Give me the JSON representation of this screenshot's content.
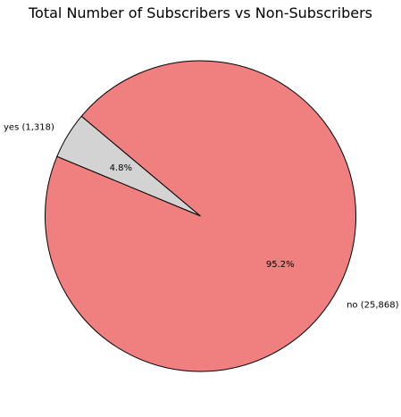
{
  "chart_data": {
    "type": "pie",
    "title": "Total Number of Subscribers vs Non-Subscribers",
    "slices": [
      {
        "category": "yes",
        "value": 1318,
        "label": "yes (1,318)",
        "percent_label": "4.8%",
        "color": "#d3d3d3"
      },
      {
        "category": "no",
        "value": 25868,
        "label": "no (25,868)",
        "percent_label": "95.2%",
        "color": "#f08080"
      }
    ],
    "start_angle_deg": 140,
    "direction": "counterclockwise",
    "edge_color": "#000000",
    "legend": "none"
  }
}
